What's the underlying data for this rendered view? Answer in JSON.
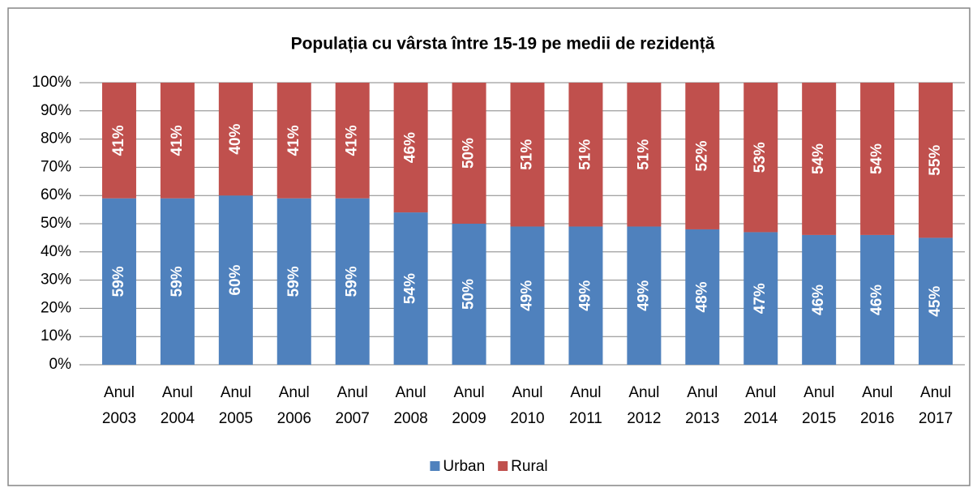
{
  "chart_data": {
    "type": "stacked_bar",
    "title": "Populația cu vârsta între 15-19  pe medii de rezidență",
    "categories": [
      "Anul 2003",
      "Anul 2004",
      "Anul 2005",
      "Anul 2006",
      "Anul 2007",
      "Anul 2008",
      "Anul 2009",
      "Anul 2010",
      "Anul 2011",
      "Anul 2012",
      "Anul 2013",
      "Anul 2014",
      "Anul 2015",
      "Anul 2016",
      "Anul 2017"
    ],
    "series": [
      {
        "name": "Urban",
        "color": "#4f81bd",
        "values": [
          59,
          59,
          60,
          59,
          59,
          54,
          50,
          49,
          49,
          49,
          48,
          47,
          46,
          46,
          45
        ],
        "value_labels": [
          "59%",
          "59%",
          "60%",
          "59%",
          "59%",
          "54%",
          "50%",
          "49%",
          "49%",
          "49%",
          "48%",
          "47%",
          "46%",
          "46%",
          "45%"
        ]
      },
      {
        "name": "Rural",
        "color": "#c0504d",
        "values": [
          41,
          41,
          40,
          41,
          41,
          46,
          50,
          51,
          51,
          51,
          52,
          53,
          54,
          54,
          55
        ],
        "value_labels": [
          "41%",
          "41%",
          "40%",
          "41%",
          "41%",
          "46%",
          "50%",
          "51%",
          "51%",
          "51%",
          "52%",
          "53%",
          "54%",
          "54%",
          "55%"
        ]
      }
    ],
    "ylim": [
      0,
      100
    ],
    "yticks": [
      {
        "value": 0,
        "label": "0%"
      },
      {
        "value": 10,
        "label": "10%"
      },
      {
        "value": 20,
        "label": "20%"
      },
      {
        "value": 30,
        "label": "30%"
      },
      {
        "value": 40,
        "label": "40%"
      },
      {
        "value": 50,
        "label": "50%"
      },
      {
        "value": 60,
        "label": "60%"
      },
      {
        "value": 70,
        "label": "70%"
      },
      {
        "value": 80,
        "label": "80%"
      },
      {
        "value": 90,
        "label": "90%"
      },
      {
        "value": 100,
        "label": "100%"
      }
    ],
    "grid": true,
    "legend": "bottom"
  }
}
